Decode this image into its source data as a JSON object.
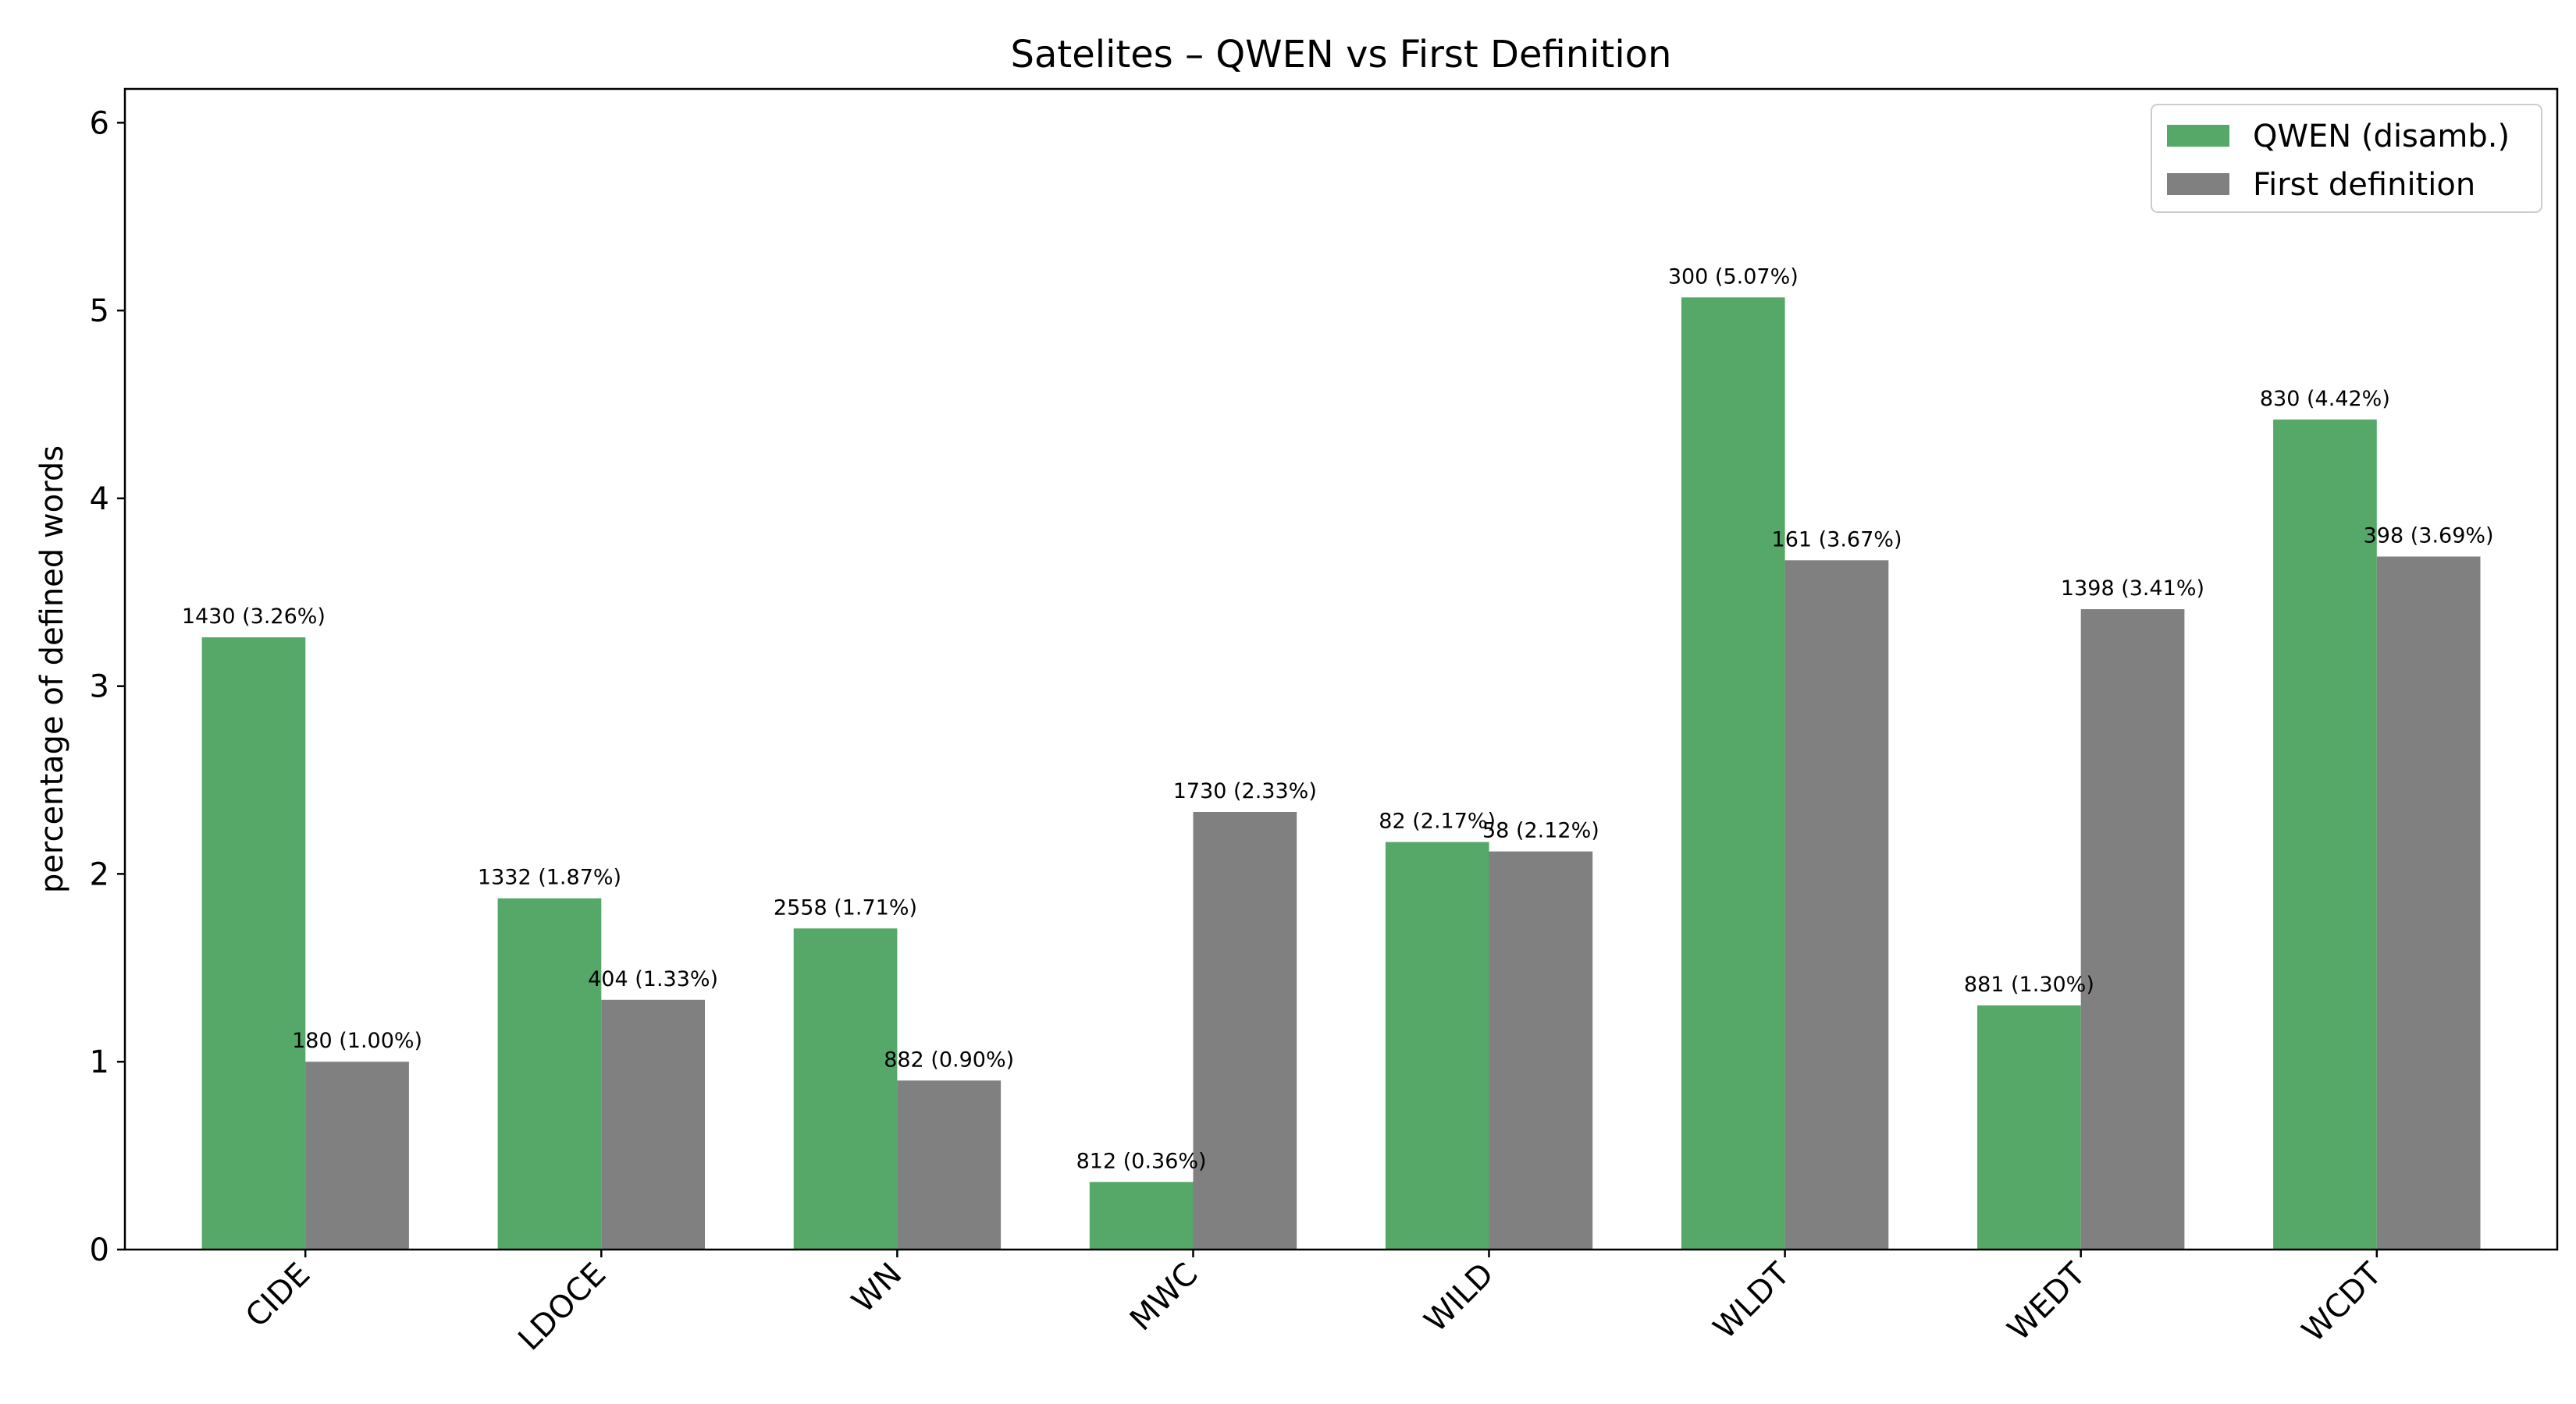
{
  "chart_data": {
    "type": "bar",
    "title": "Satelites – QWEN vs First Definition",
    "xlabel": "",
    "ylabel": "percentage of defined words",
    "categories": [
      "CIDE",
      "LDOCE",
      "WN",
      "MWC",
      "WILD",
      "WLDT",
      "WEDT",
      "WCDT"
    ],
    "series": [
      {
        "name": "QWEN (disamb.)",
        "color": "#55a868",
        "values": [
          3.26,
          1.87,
          1.71,
          0.36,
          2.17,
          5.07,
          1.3,
          4.42
        ],
        "labels": [
          "1430 (3.26%)",
          "1332 (1.87%)",
          "2558 (1.71%)",
          "812 (0.36%)",
          "82 (2.17%)",
          "300 (5.07%)",
          "881 (1.30%)",
          "830 (4.42%)"
        ]
      },
      {
        "name": "First definition",
        "color": "#808080",
        "values": [
          1.0,
          1.33,
          0.9,
          2.33,
          2.12,
          3.67,
          3.41,
          3.69
        ],
        "labels": [
          "180 (1.00%)",
          "404 (1.33%)",
          "882 (0.90%)",
          "1730 (2.33%)",
          "58 (2.12%)",
          "161 (3.67%)",
          "1398 (3.41%)",
          "398 (3.69%)"
        ]
      }
    ],
    "ylim": [
      0,
      6.18
    ],
    "yticks": [
      0,
      1,
      2,
      3,
      4,
      5,
      6
    ],
    "grid": false,
    "legend_position": "top-right"
  }
}
